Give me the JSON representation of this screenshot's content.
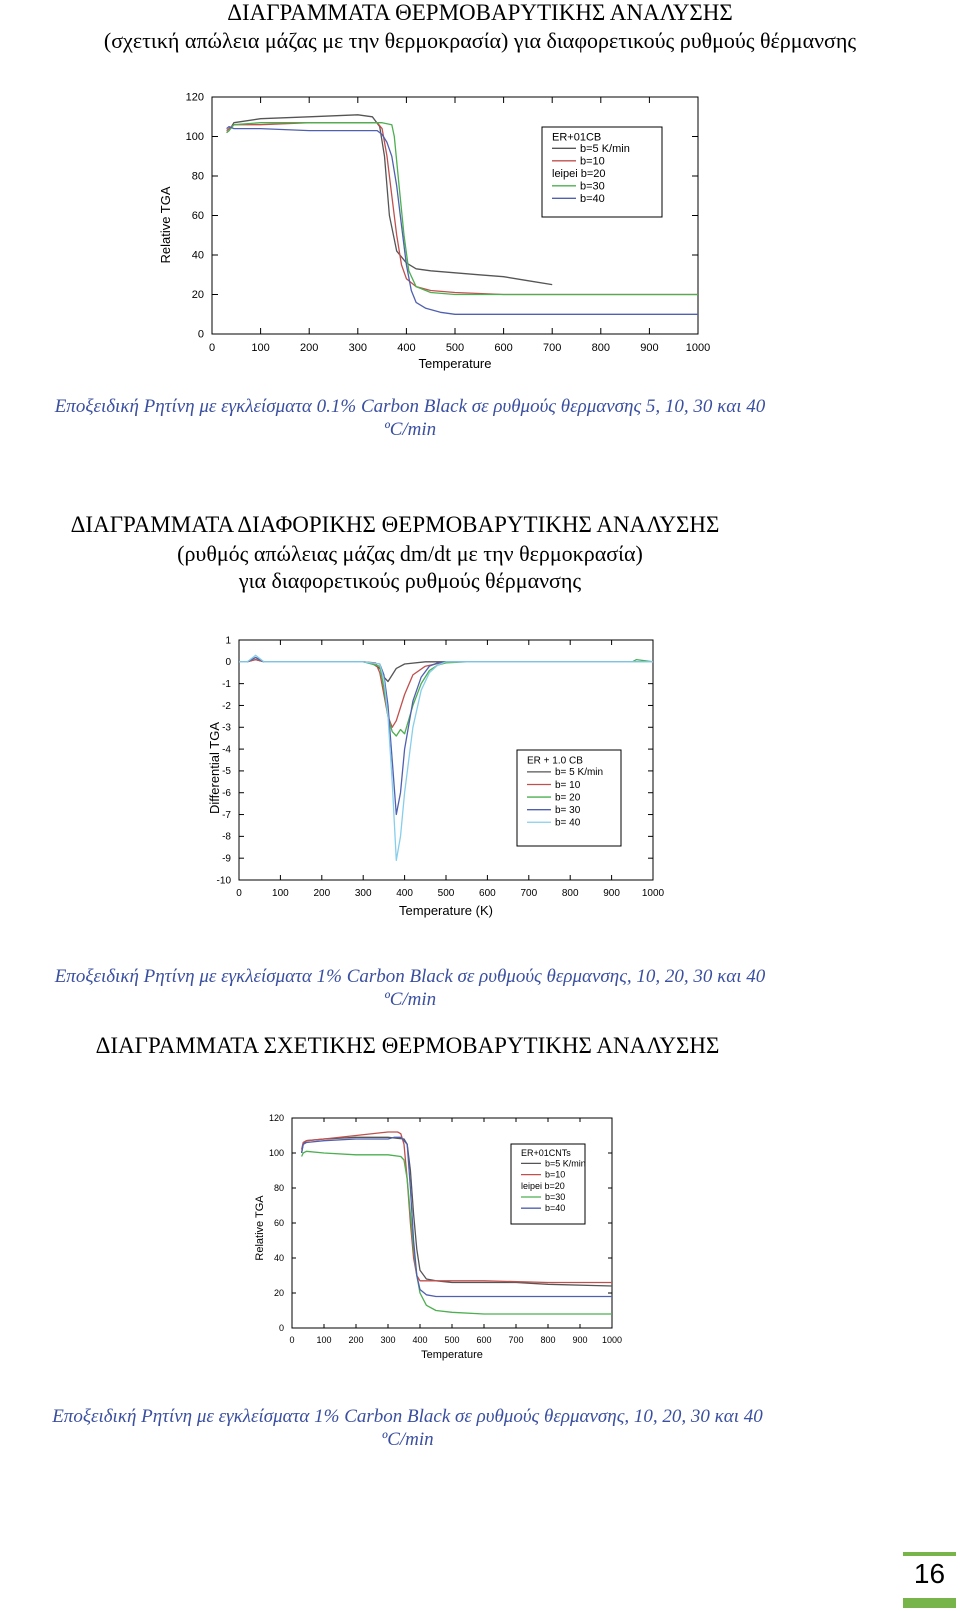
{
  "section1": {
    "title": "ΔΙΑΓΡΑΜΜΑΤΑ ΘΕΡΜΟΒΑΡΥΤΙΚΗΣ ΑΝΑΛΥΣΗΣ",
    "subtitle": "(σχετική απώλεια μάζας με την θερμοκρασία) για διαφορετικούς ρυθμούς θέρμανσης",
    "caption_line1": "Εποξειδική Ρητίνη με εγκλείσματα 0.1% Carbon Black  σε ρυθμούς θερμανσης 5, 10, 30 και 40",
    "caption_line2": "ºC/min"
  },
  "section2": {
    "title": "ΔΙΑΓΡΑΜΜΑΤΑ ΔΙΑΦΟΡΙΚΗΣ ΘΕΡΜΟΒΑΡΥΤΙΚΗΣ ΑΝΑΛΥΣΗΣ",
    "subtitle_line1": "(ρυθμός απώλειας μάζας dm/dt  με την θερμοκρασία)",
    "subtitle_line2": "για διαφορετικούς ρυθμούς θέρμανσης",
    "caption_line1": "Εποξειδική Ρητίνη με εγκλείσματα 1% Carbon Black  σε ρυθμούς θερμανσης, 10, 20, 30 και 40",
    "caption_line2": "ºC/min"
  },
  "section3": {
    "title": "ΔΙΑΓΡΑΜΜΑΤΑ ΣΧΕΤΙΚΗΣ  ΘΕΡΜΟΒΑΡΥΤΙΚΗΣ ΑΝΑΛΥΣΗΣ",
    "caption_line1": "Εποξειδική Ρητίνη με εγκλείσματα 1% Carbon Black  σε ρυθμούς θερμανσης, 10, 20, 30 και 40",
    "caption_line2": "ºC/min"
  },
  "page_number": "16",
  "colors": {
    "caption": "#3a4fa0",
    "page_accent": "#77b44a"
  },
  "chart_data": [
    {
      "type": "line",
      "xlabel": "Temperature",
      "ylabel": "Relative TGA",
      "xlim": [
        0,
        1000
      ],
      "ylim": [
        0,
        120
      ],
      "xticks": [
        "0",
        "100",
        "200",
        "300",
        "400",
        "500",
        "600",
        "700",
        "800",
        "900",
        "1000"
      ],
      "yticks": [
        "0",
        "20",
        "40",
        "60",
        "80",
        "100",
        "120"
      ],
      "legend_title": "ER+01CB",
      "legend_position": "top-right",
      "series": [
        {
          "name": "b=5 K/min",
          "color": "#555555",
          "x": [
            30,
            35,
            45,
            100,
            200,
            300,
            330,
            345,
            355,
            365,
            380,
            400,
            420,
            450,
            500,
            550,
            600,
            650,
            700
          ],
          "y": [
            102,
            103,
            107,
            109,
            110,
            111,
            110,
            105,
            90,
            60,
            42,
            36,
            33,
            32,
            31,
            30,
            29,
            27,
            25
          ]
        },
        {
          "name": "b=10",
          "color": "#c0504d",
          "x": [
            30,
            35,
            45,
            100,
            200,
            300,
            340,
            350,
            360,
            370,
            380,
            390,
            400,
            420,
            450,
            500,
            600,
            800,
            1000
          ],
          "y": [
            103,
            104,
            106,
            106,
            107,
            107,
            107,
            104,
            90,
            70,
            50,
            35,
            28,
            24,
            22,
            21,
            20,
            20,
            20
          ]
        },
        {
          "name": "leipei  b=20",
          "color": "",
          "x": [],
          "y": []
        },
        {
          "name": "b=30",
          "color": "#4caf50",
          "x": [
            30,
            35,
            45,
            100,
            200,
            300,
            350,
            370,
            375,
            385,
            395,
            405,
            420,
            450,
            500,
            600,
            800,
            1000
          ],
          "y": [
            102,
            103,
            106,
            107,
            107,
            107,
            107,
            106,
            100,
            75,
            50,
            32,
            24,
            21,
            20,
            20,
            20,
            20
          ]
        },
        {
          "name": "b=40",
          "color": "#5060b0",
          "x": [
            30,
            35,
            45,
            100,
            200,
            300,
            340,
            350,
            360,
            370,
            380,
            390,
            400,
            410,
            420,
            440,
            470,
            500,
            600,
            800,
            1000
          ],
          "y": [
            104,
            105,
            104,
            104,
            103,
            103,
            103,
            101,
            97,
            90,
            75,
            55,
            35,
            22,
            16,
            13,
            11,
            10,
            10,
            10,
            10
          ]
        }
      ]
    },
    {
      "type": "line",
      "xlabel": "Temperature  (K)",
      "ylabel": "Differential  TGA",
      "xlim": [
        0,
        1000
      ],
      "ylim": [
        -10,
        1
      ],
      "xticks": [
        "0",
        "100",
        "200",
        "300",
        "400",
        "500",
        "600",
        "700",
        "800",
        "900",
        "1000"
      ],
      "yticks": [
        "1",
        "0",
        "-1",
        "-2",
        "-3",
        "-4",
        "-5",
        "-6",
        "-7",
        "-8",
        "-9",
        "-10"
      ],
      "legend_title": "ER + 1.0 CB",
      "legend_position": "middle-right",
      "series": [
        {
          "name": "b= 5 K/min",
          "color": "#555555",
          "x": [
            0,
            20,
            40,
            60,
            100,
            200,
            300,
            320,
            340,
            350,
            360,
            370,
            380,
            400,
            450,
            500,
            1000
          ],
          "y": [
            0,
            0,
            0.1,
            0,
            0,
            0,
            0,
            -0.05,
            -0.3,
            -0.7,
            -0.9,
            -0.6,
            -0.3,
            -0.1,
            0,
            0,
            0
          ]
        },
        {
          "name": "b= 10",
          "color": "#c0504d",
          "x": [
            0,
            20,
            40,
            60,
            100,
            200,
            300,
            330,
            340,
            350,
            360,
            370,
            380,
            400,
            420,
            450,
            500,
            1000
          ],
          "y": [
            0,
            0,
            0.1,
            0,
            0,
            0,
            0,
            -0.05,
            -0.5,
            -1.5,
            -2.5,
            -3,
            -2.7,
            -1.5,
            -0.6,
            -0.2,
            0,
            0
          ]
        },
        {
          "name": "b= 20",
          "color": "#4caf50",
          "x": [
            0,
            20,
            40,
            60,
            100,
            200,
            300,
            340,
            350,
            360,
            370,
            380,
            390,
            400,
            420,
            440,
            460,
            480,
            500,
            550,
            900,
            950,
            960,
            1000
          ],
          "y": [
            0,
            0,
            0.2,
            0,
            0,
            0,
            0,
            -0.2,
            -1.2,
            -2.5,
            -3.2,
            -3.4,
            -3.1,
            -3.3,
            -2,
            -1,
            -0.4,
            -0.15,
            -0.05,
            0,
            0,
            0,
            0.1,
            0
          ]
        },
        {
          "name": "b= 30",
          "color": "#5060b0",
          "x": [
            0,
            20,
            40,
            60,
            100,
            200,
            300,
            340,
            350,
            360,
            370,
            380,
            390,
            400,
            420,
            440,
            460,
            480,
            500,
            550,
            1000
          ],
          "y": [
            0,
            0,
            0.2,
            0,
            0,
            0,
            0,
            -0.1,
            -0.6,
            -2,
            -4.5,
            -7,
            -6,
            -4,
            -1.8,
            -0.7,
            -0.2,
            -0.05,
            0,
            0,
            0
          ]
        },
        {
          "name": "b= 40",
          "color": "#87ceeb",
          "x": [
            0,
            20,
            40,
            60,
            100,
            200,
            300,
            340,
            350,
            360,
            370,
            380,
            390,
            400,
            420,
            440,
            460,
            480,
            500,
            550,
            1000
          ],
          "y": [
            0,
            0,
            0.3,
            0,
            0,
            0,
            0,
            -0.1,
            -0.8,
            -2.5,
            -5.5,
            -9.1,
            -8,
            -6,
            -3,
            -1.3,
            -0.5,
            -0.15,
            0,
            0,
            0
          ]
        }
      ]
    },
    {
      "type": "line",
      "xlabel": "Temperature",
      "ylabel": "Relative TGA",
      "xlim": [
        0,
        1000
      ],
      "ylim": [
        0,
        120
      ],
      "xticks": [
        "0",
        "100",
        "200",
        "300",
        "400",
        "500",
        "600",
        "700",
        "800",
        "900",
        "1000"
      ],
      "yticks": [
        "0",
        "20",
        "40",
        "60",
        "80",
        "100",
        "120"
      ],
      "legend_title": "ER+01CNTs",
      "legend_position": "top-right",
      "series": [
        {
          "name": "b=5 K/min",
          "color": "#555555",
          "x": [
            30,
            35,
            45,
            100,
            200,
            300,
            350,
            360,
            370,
            380,
            390,
            400,
            420,
            450,
            500,
            600,
            700,
            800,
            1000
          ],
          "y": [
            100,
            105,
            107,
            108,
            109,
            109,
            108,
            105,
            90,
            65,
            45,
            33,
            28,
            27,
            26,
            26,
            26,
            25,
            24
          ]
        },
        {
          "name": "b=10",
          "color": "#c0504d",
          "x": [
            30,
            35,
            45,
            100,
            200,
            300,
            330,
            340,
            350,
            360,
            370,
            380,
            390,
            400,
            420,
            450,
            500,
            600,
            800,
            1000
          ],
          "y": [
            102,
            106,
            107,
            108,
            110,
            112,
            112,
            111,
            105,
            85,
            60,
            40,
            30,
            27,
            27,
            27,
            27,
            27,
            26,
            26
          ]
        },
        {
          "name": "leipei  b=20",
          "color": "",
          "x": [],
          "y": []
        },
        {
          "name": "b=30",
          "color": "#4caf50",
          "x": [
            30,
            35,
            45,
            100,
            200,
            300,
            340,
            350,
            360,
            370,
            380,
            390,
            400,
            420,
            450,
            500,
            600,
            800,
            1000
          ],
          "y": [
            98,
            100,
            101,
            100,
            99,
            99,
            98,
            96,
            85,
            65,
            45,
            30,
            20,
            13,
            10,
            9,
            8,
            8,
            8
          ]
        },
        {
          "name": "b=40",
          "color": "#5060b0",
          "x": [
            30,
            35,
            45,
            100,
            200,
            300,
            320,
            340,
            360,
            370,
            380,
            390,
            400,
            420,
            450,
            500,
            600,
            800,
            1000
          ],
          "y": [
            100,
            105,
            106,
            107,
            108,
            108,
            109,
            109,
            105,
            80,
            50,
            30,
            22,
            19,
            18,
            18,
            18,
            18,
            18
          ]
        }
      ]
    }
  ]
}
